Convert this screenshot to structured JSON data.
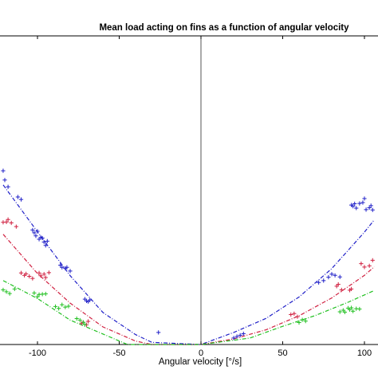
{
  "chart_data": {
    "type": "scatter",
    "title": "Mean load acting on fins as a function of angular velocity",
    "xlabel": "Angular velocity [°/s]",
    "ylabel": "",
    "xlim": [
      -122,
      107
    ],
    "ylim": [
      0,
      1
    ],
    "x_ticks": [
      -100,
      -50,
      0,
      50,
      100
    ],
    "x_tick_labels": [
      "-100",
      "-50",
      "0",
      "50",
      "100"
    ],
    "grid": false,
    "series": [
      {
        "color": "#2020c8",
        "marker": "+",
        "points": [
          [
            -121,
            0.563
          ],
          [
            -120,
            0.533
          ],
          [
            -118,
            0.511
          ],
          [
            -112,
            0.478
          ],
          [
            -110,
            0.47
          ],
          [
            -103,
            0.371
          ],
          [
            -102,
            0.362
          ],
          [
            -101,
            0.352
          ],
          [
            -100,
            0.367
          ],
          [
            -99,
            0.341
          ],
          [
            -98,
            0.347
          ],
          [
            -97,
            0.345
          ],
          [
            -96,
            0.332
          ],
          [
            -95,
            0.321
          ],
          [
            -94,
            0.335
          ],
          [
            -86,
            0.257
          ],
          [
            -85,
            0.25
          ],
          [
            -83,
            0.247
          ],
          [
            -82,
            0.25
          ],
          [
            -80,
            0.238
          ],
          [
            -71,
            0.147
          ],
          [
            -70,
            0.141
          ],
          [
            -69,
            0.139
          ],
          [
            -68,
            0.144
          ],
          [
            -26,
            0.039
          ],
          [
            20,
            0.021
          ],
          [
            22,
            0.026
          ],
          [
            24,
            0.03
          ],
          [
            26,
            0.035
          ],
          [
            72,
            0.201
          ],
          [
            75,
            0.207
          ],
          [
            78,
            0.218
          ],
          [
            80,
            0.228
          ],
          [
            82,
            0.224
          ],
          [
            85,
            0.219
          ],
          [
            92,
            0.452
          ],
          [
            94,
            0.456
          ],
          [
            95,
            0.442
          ],
          [
            97,
            0.457
          ],
          [
            99,
            0.46
          ],
          [
            101,
            0.437
          ],
          [
            103,
            0.443
          ],
          [
            105,
            0.436
          ],
          [
            104,
            0.45
          ],
          [
            93,
            0.448
          ],
          [
            100,
            0.473
          ]
        ],
        "fit": [
          [
            -121,
            0.517
          ],
          [
            -100,
            0.365
          ],
          [
            -80,
            0.223
          ],
          [
            -60,
            0.104
          ],
          [
            -40,
            0.032
          ],
          [
            -30,
            0.007
          ],
          [
            0,
            0.0
          ],
          [
            20,
            0.039
          ],
          [
            40,
            0.085
          ],
          [
            60,
            0.154
          ],
          [
            80,
            0.246
          ],
          [
            100,
            0.364
          ],
          [
            106,
            0.404
          ]
        ]
      },
      {
        "color": "#d02040",
        "marker": "+",
        "points": [
          [
            -121,
            0.396
          ],
          [
            -119,
            0.397
          ],
          [
            -118,
            0.405
          ],
          [
            -116,
            0.394
          ],
          [
            -113,
            0.382
          ],
          [
            -110,
            0.232
          ],
          [
            -108,
            0.224
          ],
          [
            -107,
            0.229
          ],
          [
            -105,
            0.221
          ],
          [
            -103,
            0.214
          ],
          [
            -99,
            0.232
          ],
          [
            -98,
            0.223
          ],
          [
            -96,
            0.228
          ],
          [
            -95,
            0.217
          ],
          [
            -93,
            0.233
          ],
          [
            -73,
            0.069
          ],
          [
            -72,
            0.072
          ],
          [
            -70,
            0.064
          ],
          [
            -69,
            0.075
          ],
          [
            55,
            0.097
          ],
          [
            57,
            0.1
          ],
          [
            59,
            0.09
          ],
          [
            83,
            0.189
          ],
          [
            84,
            0.195
          ],
          [
            86,
            0.177
          ],
          [
            91,
            0.176
          ],
          [
            92,
            0.18
          ],
          [
            98,
            0.262
          ],
          [
            100,
            0.251
          ],
          [
            103,
            0.255
          ],
          [
            105,
            0.273
          ]
        ],
        "fit": [
          [
            -121,
            0.357
          ],
          [
            -100,
            0.23
          ],
          [
            -80,
            0.134
          ],
          [
            -60,
            0.057
          ],
          [
            -40,
            0.011
          ],
          [
            -30,
            0.0
          ],
          [
            0,
            0.0
          ],
          [
            20,
            0.018
          ],
          [
            40,
            0.048
          ],
          [
            60,
            0.093
          ],
          [
            80,
            0.151
          ],
          [
            100,
            0.224
          ],
          [
            106,
            0.252
          ]
        ]
      },
      {
        "color": "#20c020",
        "marker": "+",
        "points": [
          [
            -121,
            0.177
          ],
          [
            -119,
            0.171
          ],
          [
            -117,
            0.165
          ],
          [
            -114,
            0.18
          ],
          [
            -102,
            0.167
          ],
          [
            -100,
            0.155
          ],
          [
            -99,
            0.162
          ],
          [
            -97,
            0.163
          ],
          [
            -95,
            0.164
          ],
          [
            -89,
            0.123
          ],
          [
            -87,
            0.117
          ],
          [
            -85,
            0.129
          ],
          [
            -83,
            0.121
          ],
          [
            -81,
            0.124
          ],
          [
            -76,
            0.084
          ],
          [
            -74,
            0.079
          ],
          [
            -72,
            0.072
          ],
          [
            -71,
            0.065
          ],
          [
            60,
            0.071
          ],
          [
            62,
            0.08
          ],
          [
            64,
            0.076
          ],
          [
            85,
            0.106
          ],
          [
            87,
            0.111
          ],
          [
            88,
            0.105
          ],
          [
            90,
            0.118
          ],
          [
            91,
            0.113
          ],
          [
            92,
            0.119
          ],
          [
            93,
            0.108
          ],
          [
            95,
            0.116
          ],
          [
            97,
            0.115
          ]
        ],
        "fit": [
          [
            -121,
            0.207
          ],
          [
            -100,
            0.149
          ],
          [
            -80,
            0.079
          ],
          [
            -60,
            0.034
          ],
          [
            -45,
            0.0
          ],
          [
            0,
            0.0
          ],
          [
            30,
            0.021
          ],
          [
            50,
            0.059
          ],
          [
            70,
            0.094
          ],
          [
            90,
            0.137
          ],
          [
            106,
            0.175
          ]
        ]
      }
    ]
  }
}
